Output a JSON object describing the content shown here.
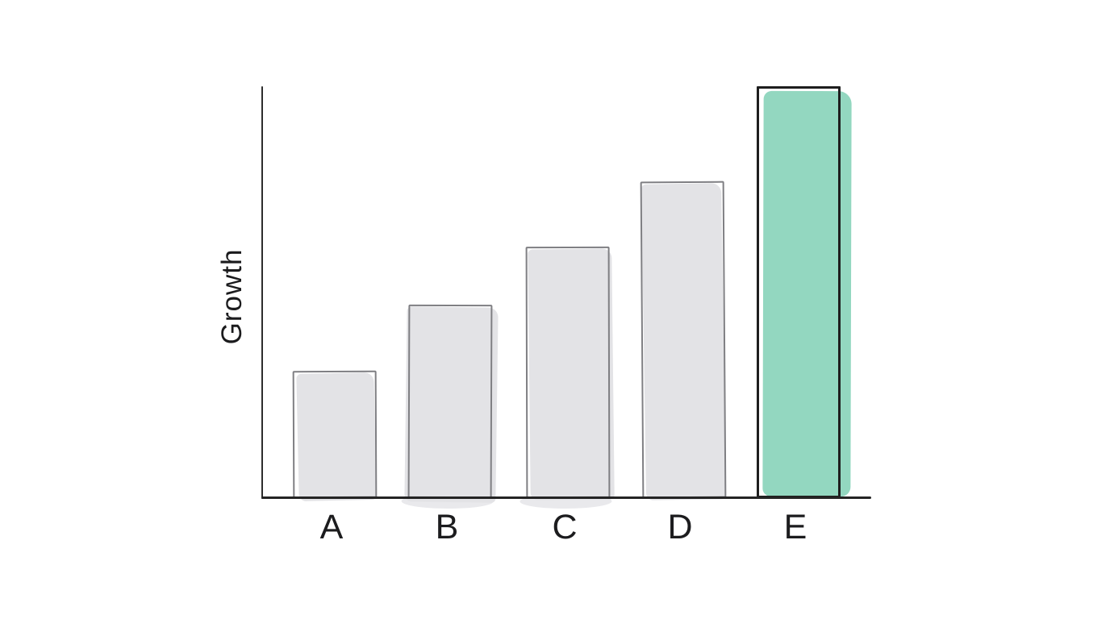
{
  "chart_data": {
    "type": "bar",
    "title": "",
    "categories": [
      "A",
      "B",
      "C",
      "D",
      "E"
    ],
    "values": [
      31,
      47,
      61,
      77,
      100
    ],
    "xlabel": "",
    "ylabel": "Growth",
    "ylim": [
      0,
      100
    ],
    "grid": false,
    "legend": false,
    "axis_ticks": "none",
    "highlight_category": "E",
    "style": "hand-drawn sketch",
    "colors": {
      "background": "#ffffff",
      "bar_fill": "#e3e3e6",
      "bar_outline": "#7f7f83",
      "highlight_fill": "#93d7c0",
      "highlight_outline": "#1e1e1e",
      "axis": "#2b2b2b",
      "label_text": "#1c1c1e"
    }
  }
}
